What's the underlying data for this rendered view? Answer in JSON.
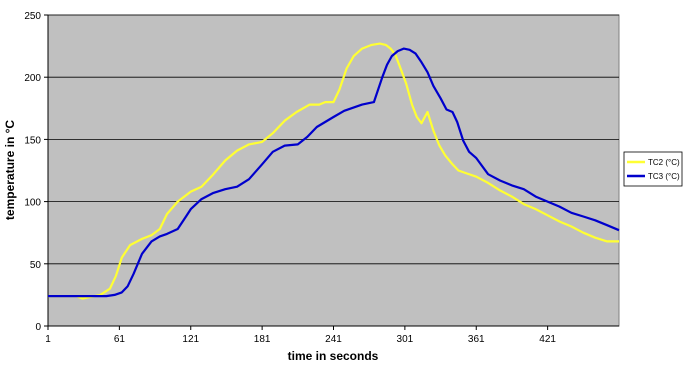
{
  "chart_data": {
    "type": "line",
    "xlabel": "time in seconds",
    "ylabel": "temperature in °C",
    "xlim": [
      1,
      481
    ],
    "ylim": [
      0,
      250
    ],
    "x_ticks": [
      1,
      61,
      121,
      181,
      241,
      301,
      361,
      421
    ],
    "x_tick_labels": [
      "1",
      "61",
      "121",
      "181",
      "241",
      "301",
      "361",
      "421"
    ],
    "y_ticks": [
      0,
      50,
      100,
      150,
      200,
      250
    ],
    "y_tick_labels": [
      "0",
      "50",
      "100",
      "150",
      "200",
      "250"
    ],
    "grid": "horizontal",
    "legend_position": "right",
    "plot_background": "#c0c0c0",
    "series": [
      {
        "name": "TC2 (°C)",
        "color": "#ffff33",
        "x": [
          1,
          25,
          30,
          45,
          53,
          58,
          63,
          70,
          80,
          88,
          95,
          101,
          110,
          121,
          130,
          140,
          150,
          160,
          170,
          181,
          190,
          200,
          210,
          221,
          229,
          234,
          241,
          246,
          252,
          258,
          265,
          273,
          280,
          285,
          289,
          293,
          297,
          302,
          307,
          311,
          315,
          320,
          325,
          330,
          335,
          341,
          346,
          352,
          361,
          371,
          381,
          391,
          401,
          411,
          421,
          431,
          441,
          451,
          461,
          471,
          481
        ],
        "y": [
          24,
          24,
          22,
          25,
          30,
          40,
          55,
          65,
          70,
          73,
          78,
          90,
          100,
          108,
          112,
          122,
          133,
          141,
          146,
          148,
          155,
          165,
          172,
          178,
          178,
          180,
          180,
          190,
          207,
          217,
          223,
          226,
          227,
          226,
          223,
          218,
          208,
          195,
          178,
          168,
          163,
          172,
          157,
          145,
          137,
          130,
          125,
          123,
          120,
          115,
          109,
          104,
          98,
          94,
          89,
          84,
          80,
          75,
          71,
          68,
          68
        ]
      },
      {
        "name": "TC3 (°C)",
        "color": "#0000cc",
        "x": [
          1,
          50,
          57,
          63,
          68,
          73,
          80,
          88,
          95,
          101,
          110,
          117,
          121,
          130,
          140,
          150,
          160,
          170,
          181,
          190,
          200,
          211,
          219,
          227,
          241,
          250,
          265,
          275,
          282,
          286,
          290,
          295,
          300,
          305,
          310,
          315,
          320,
          325,
          331,
          336,
          341,
          345,
          350,
          355,
          361,
          371,
          381,
          391,
          401,
          411,
          421,
          431,
          441,
          451,
          461,
          471,
          481
        ],
        "y": [
          24,
          24,
          25,
          27,
          32,
          42,
          58,
          68,
          72,
          74,
          78,
          88,
          94,
          102,
          107,
          110,
          112,
          118,
          130,
          140,
          145,
          146,
          152,
          160,
          168,
          173,
          178,
          180,
          200,
          210,
          217,
          221,
          223,
          222,
          219,
          212,
          204,
          193,
          183,
          174,
          172,
          164,
          149,
          140,
          135,
          122,
          117,
          113,
          110,
          104,
          100,
          96,
          91,
          88,
          85,
          81,
          77
        ]
      }
    ]
  }
}
